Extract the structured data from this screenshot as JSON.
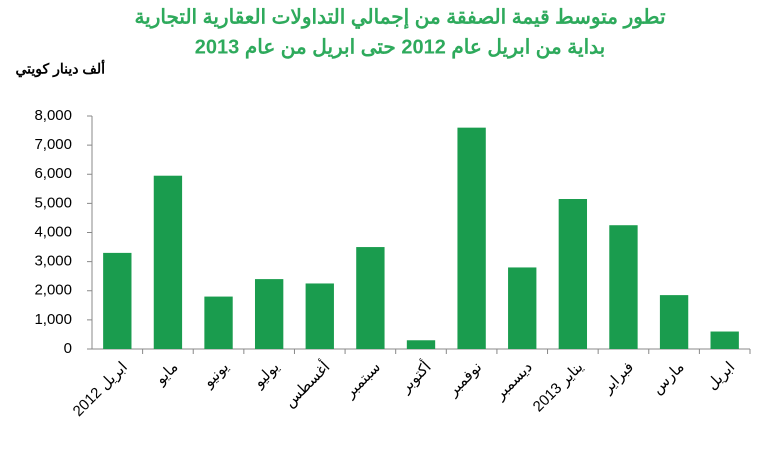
{
  "chart_data": {
    "type": "bar",
    "title": "تطور متوسط قيمة الصفقة من إجمالي التداولات العقارية التجارية",
    "subtitle": "بداية من ابريل عام 2012 حتى ابريل من عام 2013",
    "y_label": "ألف دينار كويتي",
    "categories": [
      "ابريل 2012",
      "مايو",
      "يونيو",
      "يوليو",
      "أغسطس",
      "سبتمبر",
      "أكتوبر",
      "نوفمبر",
      "ديسمبر",
      "يناير 2013",
      "فبراير",
      "مارس",
      "ابريل"
    ],
    "values": [
      3300,
      5950,
      1800,
      2400,
      2250,
      3500,
      300,
      7600,
      2800,
      5150,
      4250,
      1850,
      600
    ],
    "color": "#1a9c4e",
    "ylim": [
      0,
      8000
    ],
    "yticks": [
      0,
      {
        "value": 1000,
        "label": "1,000"
      },
      {
        "value": 2000,
        "label": "2,000"
      },
      {
        "value": 3000,
        "label": "3,000"
      },
      {
        "value": 4000,
        "label": "4,000"
      },
      {
        "value": 5000,
        "label": "5,000"
      },
      {
        "value": 6000,
        "label": "6,000"
      },
      {
        "value": 7000,
        "label": "7,000"
      },
      {
        "value": 8000,
        "label": "8,000"
      }
    ],
    "grid": false
  }
}
